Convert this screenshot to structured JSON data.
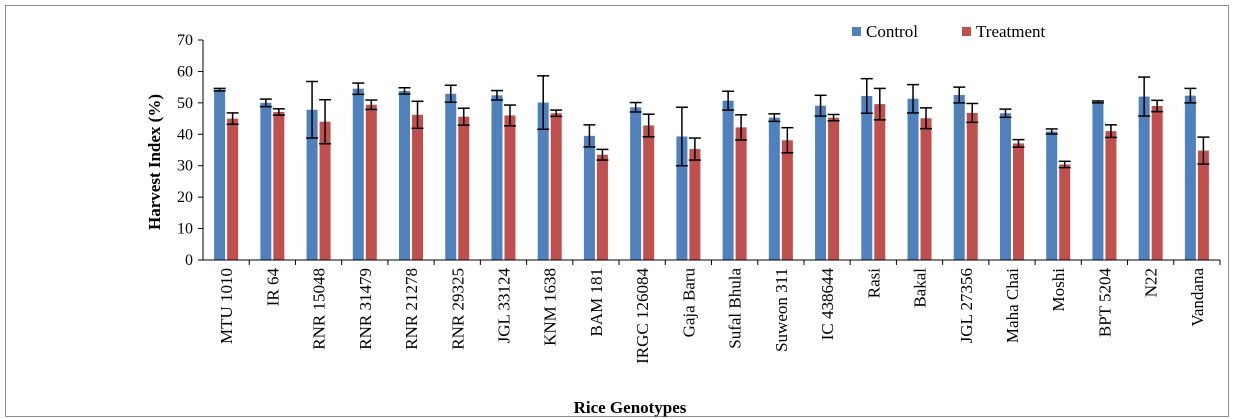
{
  "chart_data": {
    "type": "bar",
    "xlabel": "Rice Genotypes",
    "ylabel": "Harvest Index (%)",
    "ylim": [
      0,
      70
    ],
    "yticks": [
      0,
      10,
      20,
      30,
      40,
      50,
      60,
      70
    ],
    "grid": false,
    "legend_position": "top-right",
    "categories": [
      "MTU 1010",
      "IR 64",
      "RNR 15048",
      "RNR 31479",
      "RNR 21278",
      "RNR 29325",
      "JGL 33124",
      "KNM 1638",
      "BAM 181",
      "IRGC 126084",
      "Gaja Baru",
      "Sufal Bhula",
      "Suweon 311",
      "IC 438644",
      "Rasi",
      "Bakal",
      "JGL 27356",
      "Maha Chai",
      "Moshi",
      "BPT 5204",
      "N22",
      "Vandana"
    ],
    "series": [
      {
        "name": "Control",
        "color": "#4f81bd",
        "values": [
          54.2,
          50.0,
          47.8,
          54.5,
          53.8,
          52.9,
          52.4,
          50.1,
          39.5,
          48.6,
          39.3,
          50.7,
          45.3,
          49.1,
          52.2,
          51.3,
          52.5,
          46.7,
          40.9,
          50.3,
          52.0,
          52.3
        ],
        "errors": [
          0.4,
          1.2,
          9.0,
          1.8,
          1.0,
          2.7,
          1.5,
          8.5,
          3.5,
          1.5,
          9.3,
          3.0,
          1.2,
          3.3,
          5.5,
          4.5,
          2.5,
          1.3,
          0.8,
          0.3,
          6.2,
          2.3
        ]
      },
      {
        "name": "Treatment",
        "color": "#c0504d",
        "values": [
          45.0,
          47.1,
          44.0,
          49.4,
          46.2,
          45.6,
          46.0,
          46.7,
          33.5,
          42.8,
          35.3,
          42.2,
          38.1,
          45.3,
          49.6,
          45.1,
          46.8,
          37.1,
          30.4,
          41.0,
          49.0,
          34.8
        ],
        "errors": [
          1.8,
          1.0,
          7.0,
          1.5,
          4.3,
          2.7,
          3.3,
          1.0,
          1.7,
          3.6,
          3.5,
          4.0,
          4.0,
          1.0,
          5.0,
          3.3,
          3.0,
          1.2,
          1.0,
          2.0,
          1.8,
          4.3
        ]
      }
    ]
  }
}
